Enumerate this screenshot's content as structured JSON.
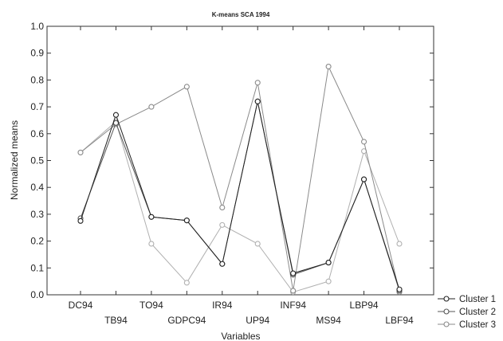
{
  "chart_data": {
    "type": "line",
    "title": "K-means SCA 1994",
    "xlabel": "Variables",
    "ylabel": "Normalized means",
    "ylim": [
      0.0,
      1.0
    ],
    "yticks": [
      "0.0",
      "0.1",
      "0.2",
      "0.3",
      "0.4",
      "0.5",
      "0.6",
      "0.7",
      "0.8",
      "0.9",
      "1.0"
    ],
    "categories": [
      "DC94",
      "TB94",
      "TO94",
      "GDPC94",
      "IR94",
      "UP94",
      "INF94",
      "MS94",
      "LBP94",
      "LBF94"
    ],
    "series": [
      {
        "name": "Cluster 1",
        "color": "#222222",
        "values": [
          0.275,
          0.67,
          0.29,
          0.277,
          0.115,
          0.72,
          0.08,
          0.12,
          0.43,
          0.02
        ]
      },
      {
        "name": "Cluster 2",
        "color": "#555555",
        "values": [
          0.285,
          0.64,
          0.29,
          0.277,
          0.115,
          0.72,
          0.075,
          0.12,
          0.43,
          0.015
        ]
      },
      {
        "name": "Cluster 3",
        "color": "#8a8a8a",
        "values": [
          0.53,
          0.635,
          0.7,
          0.775,
          0.325,
          0.79,
          0.015,
          0.85,
          0.57,
          0.01
        ]
      },
      {
        "name": "",
        "color": "#b0b0b0",
        "values": [
          0.53,
          0.645,
          0.19,
          0.045,
          0.26,
          0.19,
          0.01,
          0.05,
          0.535,
          0.19
        ]
      }
    ],
    "legend_position": "bottom-right",
    "grid": false
  }
}
